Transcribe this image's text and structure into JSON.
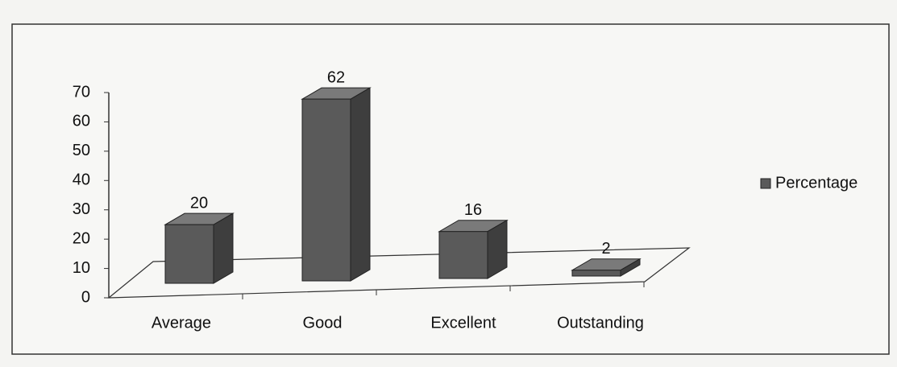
{
  "chart_data": {
    "type": "bar3d",
    "categories": [
      "Average",
      "Good",
      "Excellent",
      "Outstanding"
    ],
    "series": [
      {
        "name": "Percentage",
        "color": "#5a5a5a",
        "values": [
          20,
          62,
          16,
          2
        ]
      }
    ],
    "ylim": [
      0,
      70
    ],
    "yticks": [
      0,
      10,
      20,
      30,
      40,
      50,
      60,
      70
    ],
    "legend": "right"
  }
}
